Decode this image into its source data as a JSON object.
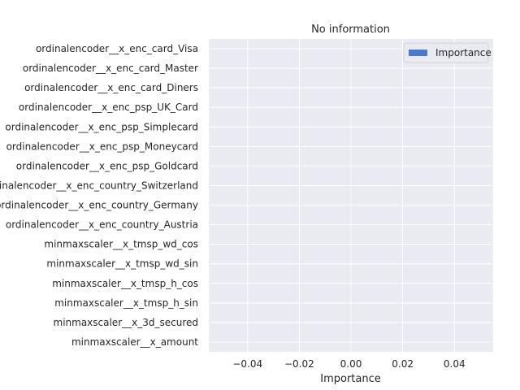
{
  "chart_data": {
    "type": "bar",
    "orientation": "horizontal",
    "title": "No information",
    "xlabel": "Importance",
    "ylabel": "",
    "xlim": [
      -0.055,
      0.055
    ],
    "xticks": [
      -0.04,
      -0.02,
      0.0,
      0.02,
      0.04
    ],
    "xtick_labels": [
      "−0.04",
      "−0.02",
      "0.00",
      "0.02",
      "0.04"
    ],
    "grid": true,
    "legend": {
      "position": "top-right",
      "entries": [
        "Importance"
      ]
    },
    "categories": [
      "ordinalencoder__x_enc_card_Visa",
      "ordinalencoder__x_enc_card_Master",
      "ordinalencoder__x_enc_card_Diners",
      "ordinalencoder__x_enc_psp_UK_Card",
      "ordinalencoder__x_enc_psp_Simplecard",
      "ordinalencoder__x_enc_psp_Moneycard",
      "ordinalencoder__x_enc_psp_Goldcard",
      "ordinalencoder__x_enc_country_Switzerland",
      "ordinalencoder__x_enc_country_Germany",
      "ordinalencoder__x_enc_country_Austria",
      "minmaxscaler__x_tmsp_wd_cos",
      "minmaxscaler__x_tmsp_wd_sin",
      "minmaxscaler__x_tmsp_h_cos",
      "minmaxscaler__x_tmsp_h_sin",
      "minmaxscaler__x_3d_secured",
      "minmaxscaler__x_amount"
    ],
    "series": [
      {
        "name": "Importance",
        "values": [
          0,
          0,
          0,
          0,
          0,
          0,
          0,
          0,
          0,
          0,
          0,
          0,
          0,
          0,
          0,
          0
        ]
      }
    ],
    "colors": {
      "bar": "#4878d0",
      "plot_bg": "#eaeaf2",
      "grid": "#ffffff",
      "text": "#262626"
    }
  }
}
